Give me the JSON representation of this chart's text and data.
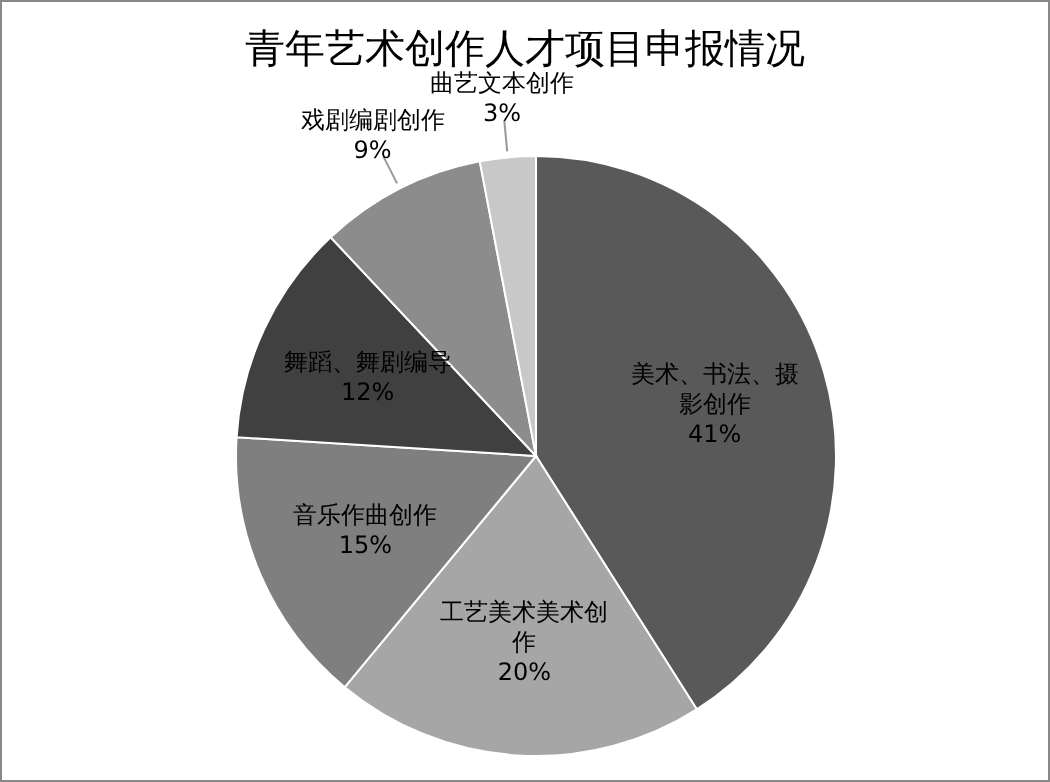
{
  "chart_data": {
    "type": "pie",
    "title": "青年艺术创作人才项目申报情况",
    "categories": [
      "美术、书法、摄影创作",
      "工艺美术美术创作",
      "音乐作曲创作",
      "舞蹈、舞剧编导",
      "戏剧编剧创作",
      "曲艺文本创作"
    ],
    "values": [
      41,
      20,
      15,
      12,
      9,
      3
    ],
    "value_labels": [
      "41%",
      "20%",
      "15%",
      "12%",
      "9%",
      "3%"
    ],
    "colors": [
      "#595959",
      "#a6a6a6",
      "#7f7f7f",
      "#404040",
      "#8c8c8c",
      "#c8c8c8"
    ]
  }
}
